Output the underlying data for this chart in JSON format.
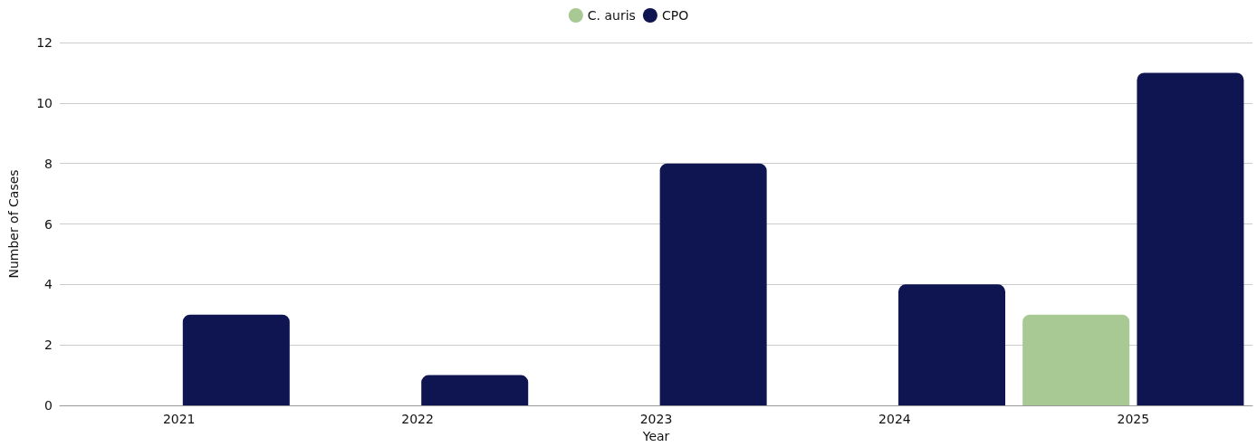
{
  "chart_data": {
    "type": "bar",
    "xlabel": "Year",
    "ylabel": "Number of Cases",
    "categories": [
      "2021",
      "2022",
      "2023",
      "2024",
      "2025"
    ],
    "series": [
      {
        "name": "C. auris",
        "color": "#a9c994",
        "values": [
          0,
          0,
          0,
          0,
          3
        ]
      },
      {
        "name": "CPO",
        "color": "#0e1551",
        "values": [
          3,
          1,
          8,
          4,
          11
        ]
      }
    ],
    "ylim": [
      0,
      12
    ],
    "yticks": [
      0,
      2,
      4,
      6,
      8,
      10,
      12
    ],
    "grid": "y",
    "legend": "top"
  }
}
